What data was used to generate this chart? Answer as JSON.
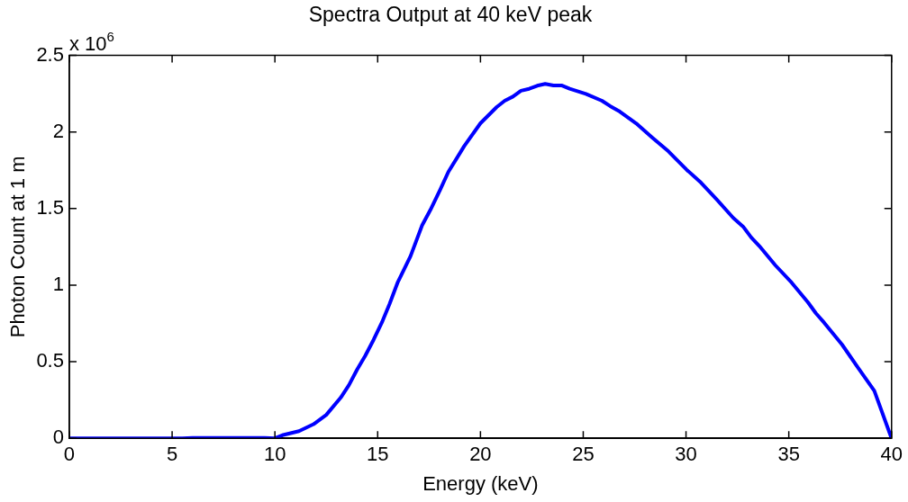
{
  "chart_data": {
    "type": "line",
    "title": "Spectra Output at 40 keV peak",
    "xlabel": "Energy (keV)",
    "ylabel": "Photon Count at 1 m",
    "annotations": [
      "x 10$^{6}$"
    ],
    "series": [
      {
        "color": "#0000ff",
        "x": [
          0,
          5,
          5.5,
          6,
          9.5,
          10,
          10.36,
          11.17,
          11.88,
          12.5,
          13.2,
          13.6,
          14.0,
          14.4,
          14.8,
          15.2,
          15.58,
          15.98,
          16.6,
          17.16,
          17.56,
          18.03,
          18.44,
          19.21,
          20,
          20.79,
          21.18,
          21.58,
          21.97,
          22.37,
          22.76,
          23.15,
          23.55,
          23.94,
          24.34,
          25.13,
          25.91,
          26.31,
          26.78,
          27.57,
          28.36,
          29.15,
          29.54,
          30.02,
          30.73,
          31.51,
          32.3,
          32.78,
          33.17,
          33.57,
          34.35,
          35.14,
          35.93,
          36.32,
          36.72,
          37.59,
          38.38,
          39.16,
          40
        ],
        "values": [
          0,
          0,
          0,
          0.003,
          0.003,
          0,
          0.02,
          0.047,
          0.092,
          0.153,
          0.265,
          0.347,
          0.449,
          0.54,
          0.643,
          0.755,
          0.878,
          1.02,
          1.19,
          1.39,
          1.49,
          1.62,
          1.74,
          1.908,
          2.057,
          2.163,
          2.204,
          2.231,
          2.269,
          2.282,
          2.302,
          2.314,
          2.304,
          2.304,
          2.282,
          2.249,
          2.204,
          2.169,
          2.133,
          2.057,
          1.963,
          1.873,
          1.82,
          1.755,
          1.669,
          1.557,
          1.439,
          1.382,
          1.312,
          1.255,
          1.129,
          1.016,
          0.888,
          0.816,
          0.755,
          0.612,
          0.459,
          0.31,
          0
        ]
      }
    ],
    "xlim": [
      0,
      40
    ],
    "xticks": [
      0,
      5,
      10,
      15,
      20,
      25,
      30,
      35,
      40
    ],
    "ylim": [
      0,
      2.5
    ],
    "yticks": [
      0,
      0.5,
      1,
      1.5,
      2,
      2.5
    ],
    "grid": false,
    "legend": false,
    "marker": "none",
    "line_style": "solid"
  }
}
